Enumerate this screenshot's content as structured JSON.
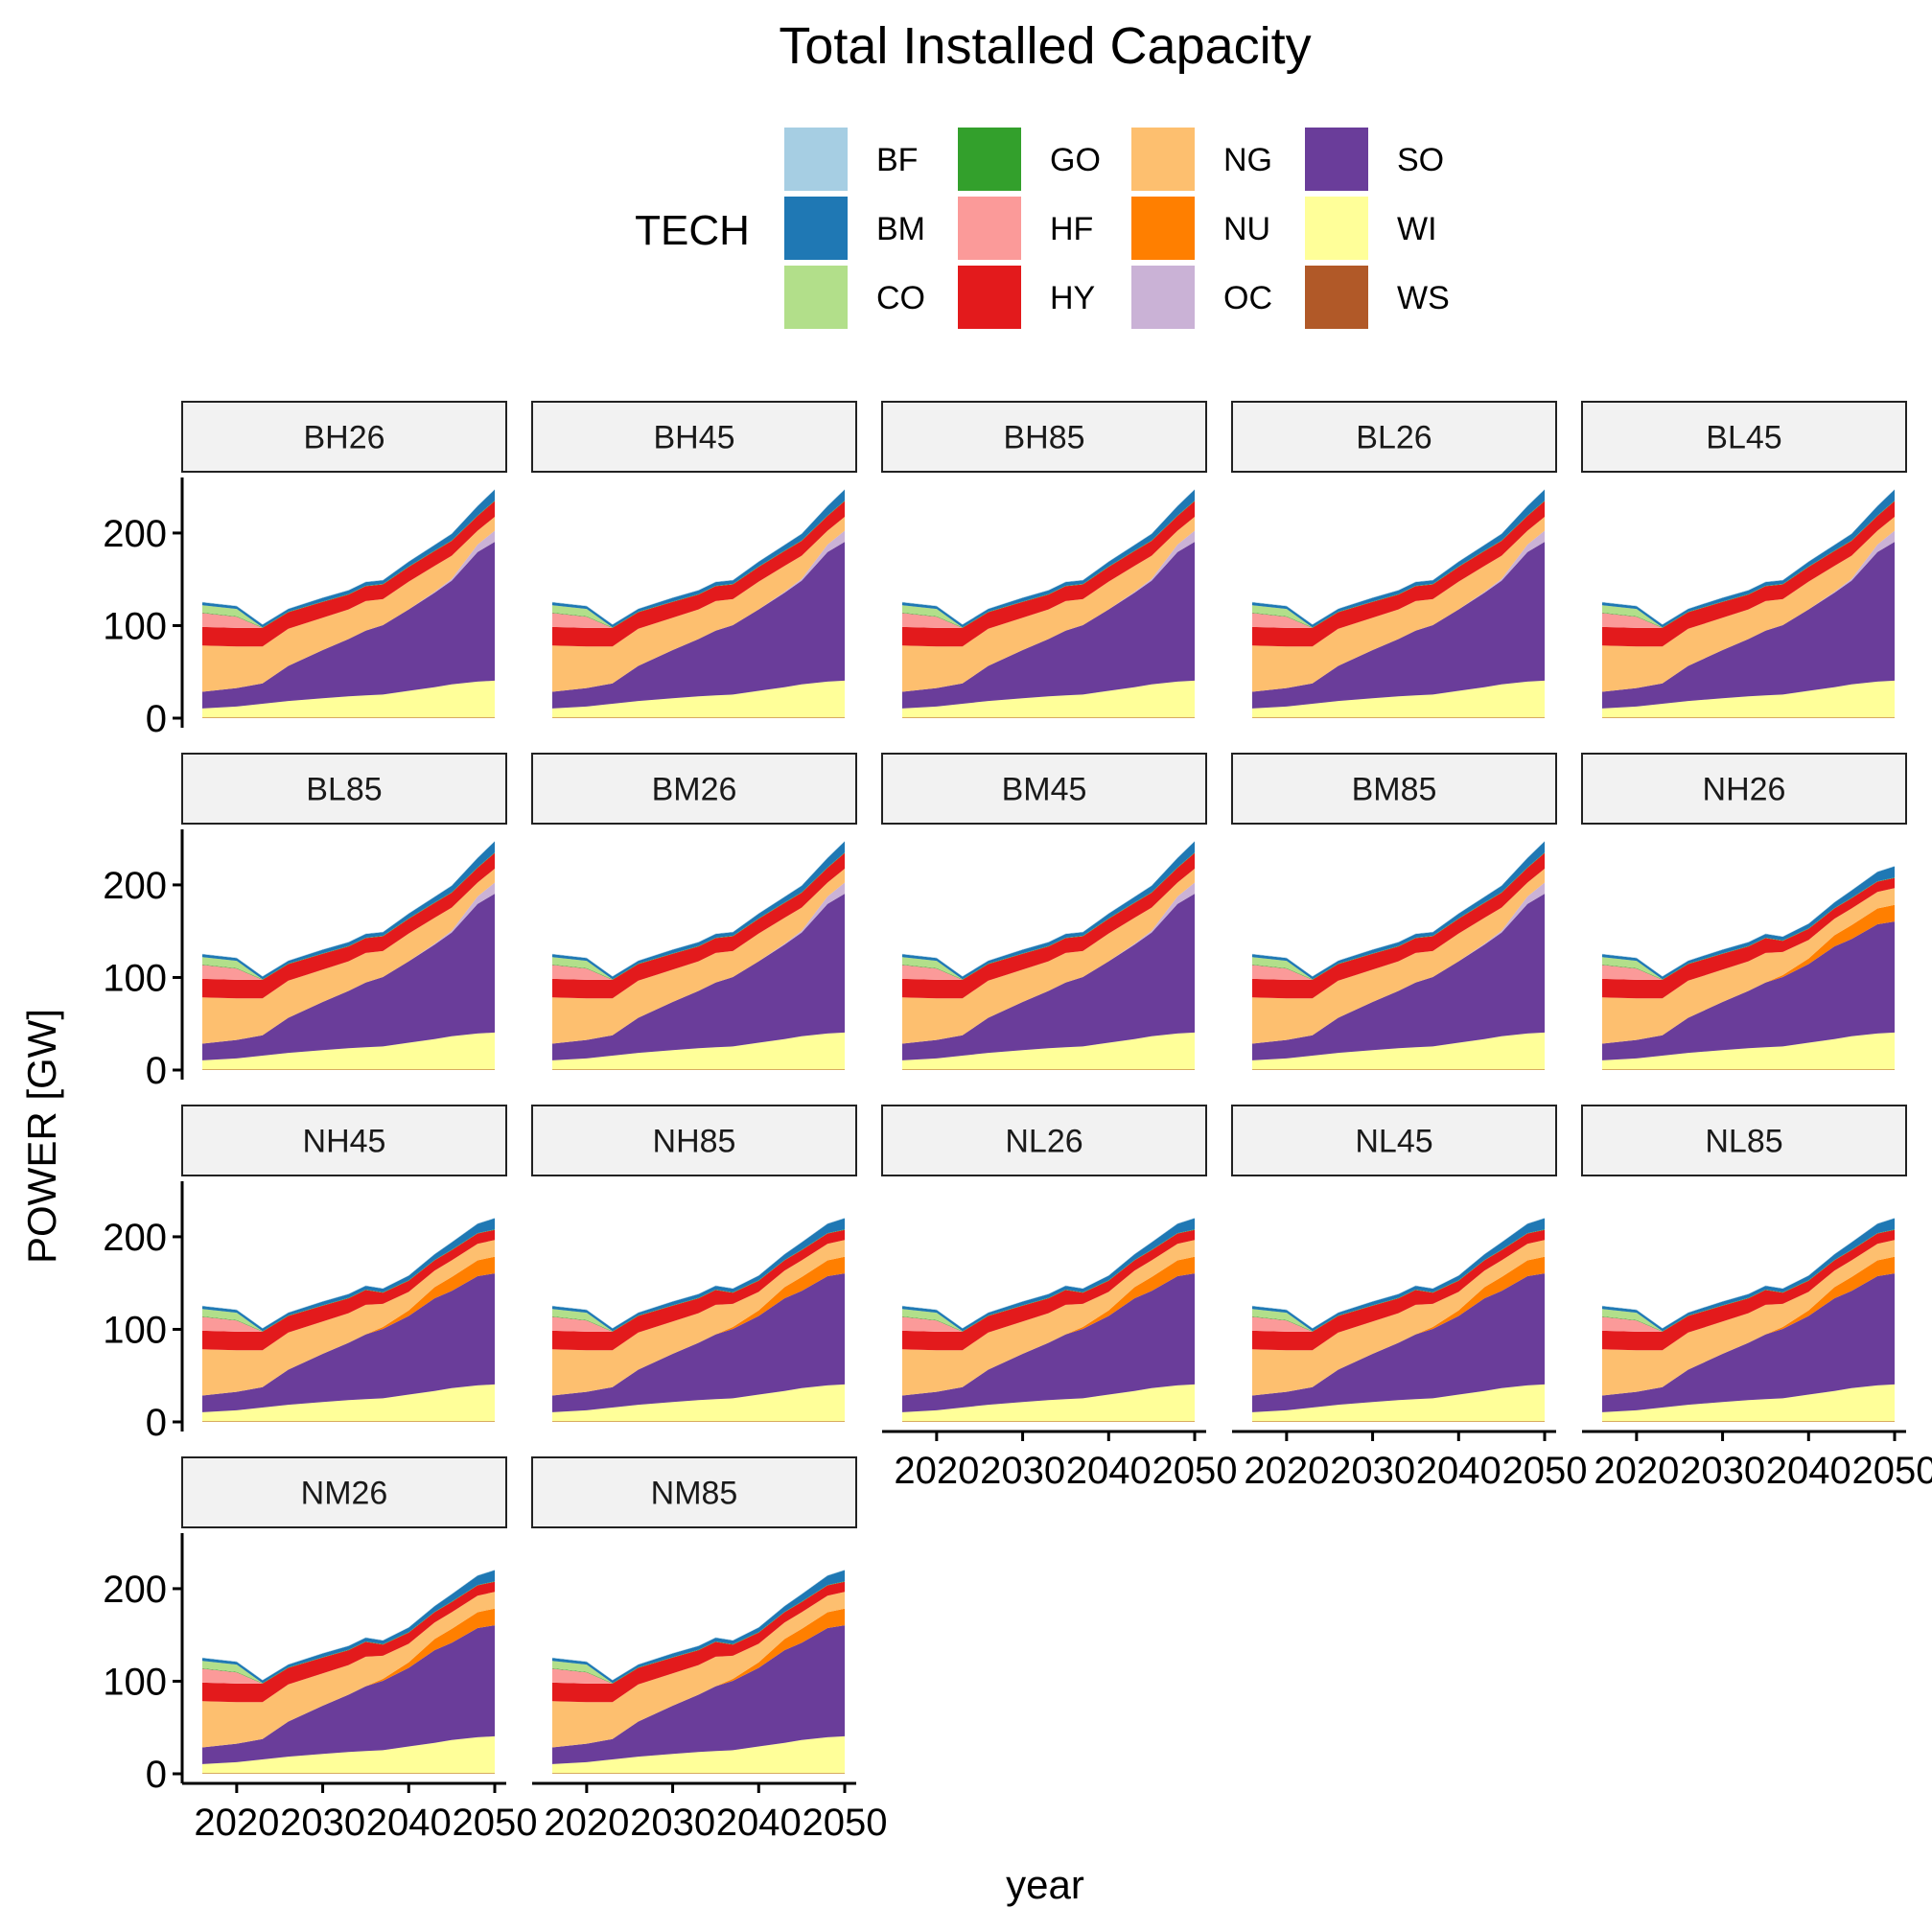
{
  "chart_data": {
    "type": "area",
    "title": "Total Installed Capacity",
    "xlabel": "year",
    "ylabel": "POWER [GW]",
    "ylim": [
      0,
      260
    ],
    "y_ticks": [
      0,
      100,
      200
    ],
    "xlim": [
      2015,
      2050
    ],
    "x_ticks": [
      2020,
      2030,
      2040,
      2050
    ],
    "x_tick_labels": [
      "2020",
      "2030",
      "2040",
      "2050"
    ],
    "stacked": true,
    "legend": {
      "title": "TECH",
      "position": "top",
      "items": [
        {
          "name": "BF",
          "color": "#A6CEE3"
        },
        {
          "name": "BM",
          "color": "#1F78B4"
        },
        {
          "name": "CO",
          "color": "#B2DF8A"
        },
        {
          "name": "GO",
          "color": "#33A02C"
        },
        {
          "name": "HF",
          "color": "#FB9A99"
        },
        {
          "name": "HY",
          "color": "#E31A1C"
        },
        {
          "name": "NG",
          "color": "#FDBF6F"
        },
        {
          "name": "NU",
          "color": "#FF7F00"
        },
        {
          "name": "OC",
          "color": "#CAB2D6"
        },
        {
          "name": "SO",
          "color": "#6A3D9A"
        },
        {
          "name": "WI",
          "color": "#FFFF99"
        },
        {
          "name": "WS",
          "color": "#B15928"
        }
      ]
    },
    "panel_order": [
      "BH26",
      "BH45",
      "BH85",
      "BL26",
      "BL45",
      "BL85",
      "BM26",
      "BM45",
      "BM85",
      "NH26",
      "NH45",
      "NH85",
      "NL26",
      "NL45",
      "NL85",
      "NM26",
      "NM85"
    ],
    "x": [
      2016,
      2020,
      2023,
      2026,
      2030,
      2033,
      2035,
      2037,
      2040,
      2043,
      2045,
      2048,
      2050
    ],
    "scenario_groups": {
      "B": {
        "panels": [
          "BH26",
          "BH45",
          "BH85",
          "BL26",
          "BL45",
          "BL85",
          "BM26",
          "BM45",
          "BM85"
        ],
        "series": [
          {
            "name": "WS",
            "values": [
              0.5,
              0.5,
              0.5,
              0.5,
              0.5,
              0.5,
              0.5,
              0.5,
              0.5,
              0.5,
              0.5,
              0.5,
              0.5
            ]
          },
          {
            "name": "WI",
            "values": [
              10,
              12,
              15,
              18,
              21,
              23,
              24,
              25,
              29,
              33,
              36,
              39,
              40
            ]
          },
          {
            "name": "SO",
            "values": [
              18,
              20,
              22,
              38,
              52,
              62,
              70,
              75,
              88,
              102,
              112,
              140,
              150
            ]
          },
          {
            "name": "OC",
            "values": [
              0,
              0,
              0,
              0,
              0,
              0,
              0,
              0,
              0,
              1,
              2,
              8,
              12
            ]
          },
          {
            "name": "NU",
            "values": [
              0,
              0,
              0,
              0,
              0,
              0,
              0,
              0,
              0,
              0,
              0,
              0,
              0
            ]
          },
          {
            "name": "NG",
            "values": [
              50,
              45,
              40,
              40,
              35,
              32,
              32,
              28,
              30,
              28,
              25,
              15,
              15
            ]
          },
          {
            "name": "HY",
            "values": [
              20,
              20,
              20,
              18,
              17,
              16,
              16,
              16,
              16,
              16,
              16,
              16,
              17
            ]
          },
          {
            "name": "HF",
            "values": [
              15,
              12,
              0,
              0,
              0,
              0,
              0,
              0,
              0,
              0,
              0,
              0,
              0
            ]
          },
          {
            "name": "GO",
            "values": [
              0.5,
              0.5,
              0.5,
              0.5,
              0.5,
              0.5,
              0.5,
              0.5,
              0.5,
              0.5,
              0.5,
              0.5,
              0.5
            ]
          },
          {
            "name": "CO",
            "values": [
              8,
              8,
              0,
              0,
              0,
              0,
              0,
              0,
              0,
              0,
              0,
              0,
              0
            ]
          },
          {
            "name": "BM",
            "values": [
              3,
              3,
              3,
              3,
              4,
              4,
              4,
              4,
              5,
              6,
              7,
              10,
              12
            ]
          },
          {
            "name": "BF",
            "values": [
              0.5,
              0.5,
              0.5,
              0.5,
              0.5,
              0.5,
              0.5,
              0.5,
              0.5,
              0.5,
              0.5,
              0.5,
              0.5
            ]
          }
        ]
      },
      "N": {
        "panels": [
          "NH26",
          "NH45",
          "NH85",
          "NL26",
          "NL45",
          "NL85",
          "NM26",
          "NM85"
        ],
        "series": [
          {
            "name": "WS",
            "values": [
              0.5,
              0.5,
              0.5,
              0.5,
              0.5,
              0.5,
              0.5,
              0.5,
              0.5,
              0.5,
              0.5,
              0.5,
              0.5
            ]
          },
          {
            "name": "WI",
            "values": [
              10,
              12,
              15,
              18,
              21,
              23,
              24,
              25,
              29,
              33,
              36,
              39,
              40
            ]
          },
          {
            "name": "SO",
            "values": [
              18,
              20,
              22,
              38,
              52,
              62,
              70,
              75,
              85,
              100,
              105,
              118,
              120
            ]
          },
          {
            "name": "OC",
            "values": [
              0,
              0,
              0,
              0,
              0,
              0,
              0,
              0,
              0,
              0,
              0,
              0,
              0
            ]
          },
          {
            "name": "NU",
            "values": [
              0,
              0,
              0,
              0,
              0,
              0,
              0,
              2,
              6,
              12,
              15,
              17,
              18
            ]
          },
          {
            "name": "NG",
            "values": [
              50,
              45,
              40,
              40,
              35,
              32,
              32,
              25,
              20,
              18,
              18,
              18,
              18
            ]
          },
          {
            "name": "HY",
            "values": [
              20,
              20,
              20,
              18,
              17,
              16,
              16,
              12,
              12,
              11,
              11,
              11,
              11
            ]
          },
          {
            "name": "HF",
            "values": [
              15,
              12,
              0,
              0,
              0,
              0,
              0,
              0,
              0,
              0,
              0,
              0,
              0
            ]
          },
          {
            "name": "GO",
            "values": [
              0.5,
              0.5,
              0.5,
              0.5,
              0.5,
              0.5,
              0.5,
              0.5,
              0.5,
              0.5,
              0.5,
              0.5,
              0.5
            ]
          },
          {
            "name": "CO",
            "values": [
              8,
              8,
              0,
              0,
              0,
              0,
              0,
              0,
              0,
              0,
              0,
              0,
              0
            ]
          },
          {
            "name": "BM",
            "values": [
              3,
              3,
              3,
              3,
              4,
              4,
              4,
              4,
              5,
              6,
              8,
              10,
              12
            ]
          },
          {
            "name": "BF",
            "values": [
              0.5,
              0.5,
              0.5,
              0.5,
              0.5,
              0.5,
              0.5,
              0.5,
              0.5,
              0.5,
              0.5,
              0.5,
              0.5
            ]
          }
        ]
      }
    }
  }
}
